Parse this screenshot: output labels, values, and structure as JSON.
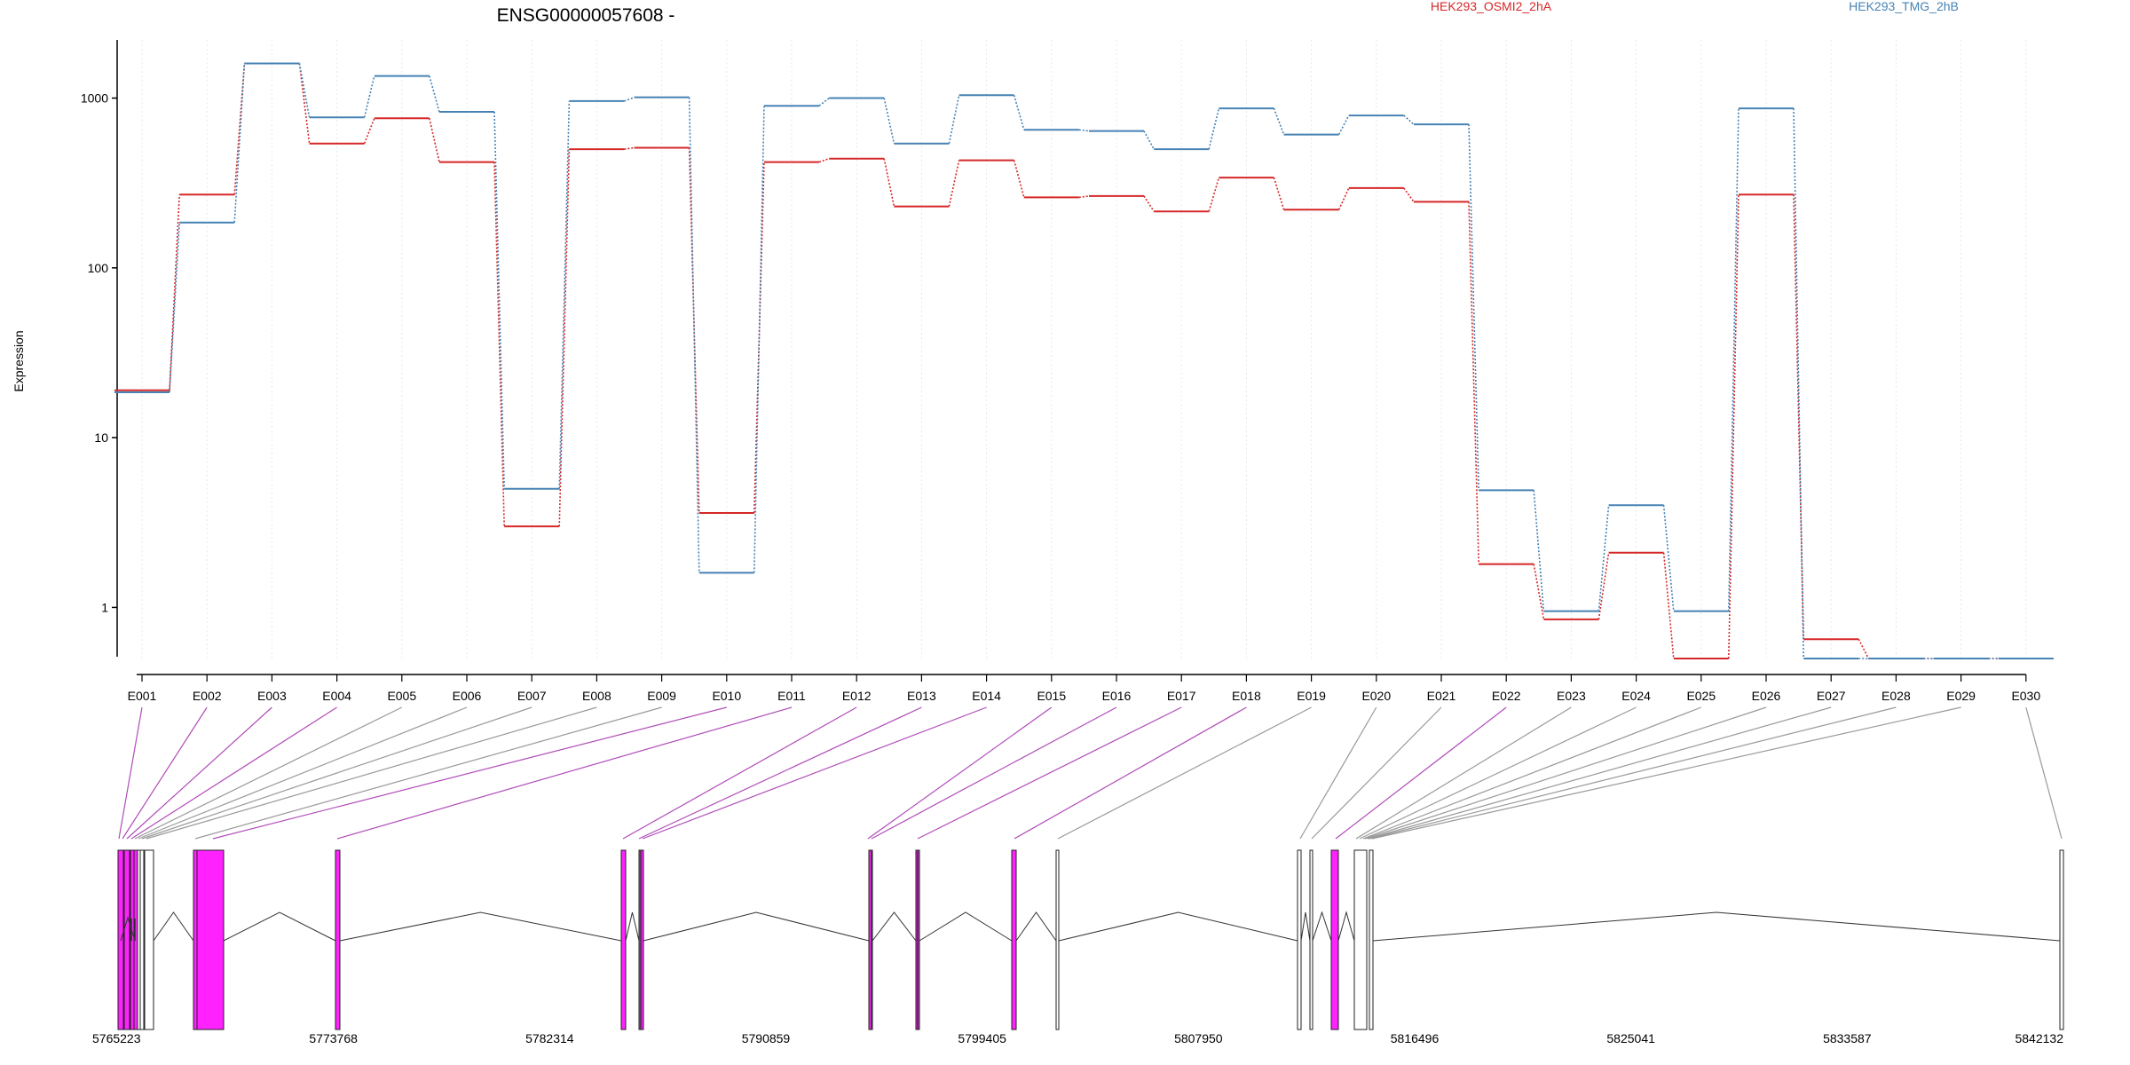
{
  "chart_data": {
    "type": "line",
    "title": "ENSG00000057608 -",
    "ylabel": "Expression",
    "xlabel": "",
    "y_scale": "log",
    "ylim": [
      0.5,
      2200
    ],
    "y_ticks": [
      1,
      10,
      100,
      1000
    ],
    "y_tick_labels": [
      "1",
      "10",
      "100",
      "1000"
    ],
    "grid": "vertical dotted lines at each exon",
    "legend_position": "top",
    "categories": [
      "E001",
      "E002",
      "E003",
      "E004",
      "E005",
      "E006",
      "E007",
      "E008",
      "E009",
      "E010",
      "E011",
      "E012",
      "E013",
      "E014",
      "E015",
      "E016",
      "E017",
      "E018",
      "E019",
      "E020",
      "E021",
      "E022",
      "E023",
      "E024",
      "E025",
      "E026",
      "E027",
      "E028",
      "E029",
      "E030"
    ],
    "series": [
      {
        "name": "HEK293_OSMI2_2hA",
        "color": "#d62728",
        "values": [
          19,
          270,
          1600,
          540,
          760,
          420,
          3,
          500,
          510,
          3.6,
          420,
          440,
          230,
          430,
          260,
          265,
          215,
          340,
          220,
          295,
          245,
          1.8,
          0.85,
          2.1,
          0.5,
          270,
          0.65,
          0.5,
          0.5,
          0.5
        ]
      },
      {
        "name": "HEK293_TMG_2hB",
        "color": "#4682b4",
        "values": [
          18.5,
          185,
          1600,
          770,
          1350,
          830,
          5,
          960,
          1010,
          1.6,
          900,
          1000,
          540,
          1040,
          650,
          640,
          500,
          870,
          610,
          790,
          700,
          4.9,
          0.95,
          4,
          0.95,
          870,
          0.5,
          0.5,
          0.5,
          0.5
        ]
      }
    ],
    "genome": {
      "coordinate_ticks": [
        5765223,
        5773768,
        5782314,
        5790859,
        5799405,
        5807950,
        5816496,
        5825041,
        5833587,
        5842132
      ],
      "start": 5765223,
      "end": 5842132,
      "exon_colors": {
        "highlighted": "#ff22ff",
        "normal": "#ffffff"
      },
      "connector_colors": {
        "highlighted": "#b04cb8",
        "normal": "#999999"
      }
    }
  }
}
